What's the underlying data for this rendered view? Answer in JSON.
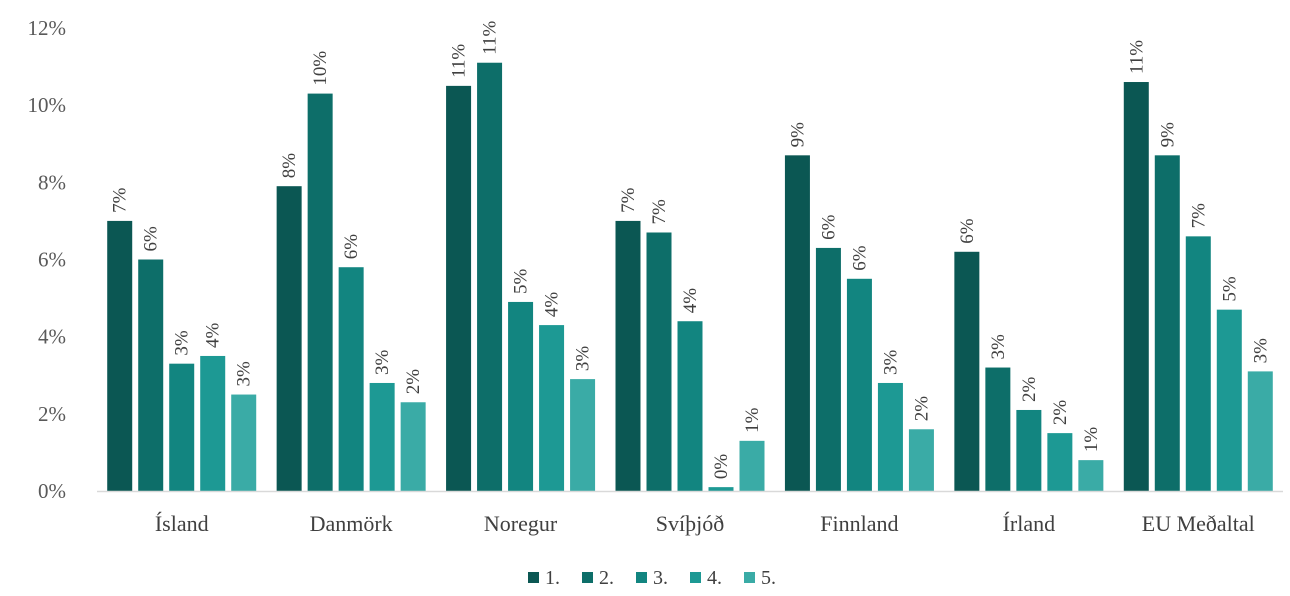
{
  "chart_data": {
    "type": "bar",
    "categories": [
      "Ísland",
      "Danmörk",
      "Noregur",
      "Svíþjóð",
      "Finnland",
      "Írland",
      "EU Meðaltal"
    ],
    "series": [
      {
        "name": "1.",
        "color": "#0b5753",
        "values": [
          7.0,
          7.9,
          10.5,
          7.0,
          8.7,
          6.2,
          10.6
        ],
        "labels": [
          "7%",
          "8%",
          "11%",
          "7%",
          "9%",
          "6%",
          "11%"
        ]
      },
      {
        "name": "2.",
        "color": "#0d6e69",
        "values": [
          6.0,
          10.3,
          11.1,
          6.7,
          6.3,
          3.2,
          8.7
        ],
        "labels": [
          "6%",
          "10%",
          "11%",
          "7%",
          "6%",
          "3%",
          "9%"
        ]
      },
      {
        "name": "3.",
        "color": "#128580",
        "values": [
          3.3,
          5.8,
          4.9,
          4.4,
          5.5,
          2.1,
          6.6
        ],
        "labels": [
          "3%",
          "6%",
          "5%",
          "4%",
          "6%",
          "2%",
          "7%"
        ]
      },
      {
        "name": "4.",
        "color": "#1d9994",
        "values": [
          3.5,
          2.8,
          4.3,
          0.1,
          2.8,
          1.5,
          4.7
        ],
        "labels": [
          "4%",
          "3%",
          "4%",
          "0%",
          "3%",
          "2%",
          "5%"
        ]
      },
      {
        "name": "5.",
        "color": "#3aaba6",
        "values": [
          2.5,
          2.3,
          2.9,
          1.3,
          1.6,
          0.8,
          3.1
        ],
        "labels": [
          "3%",
          "2%",
          "3%",
          "1%",
          "2%",
          "1%",
          "3%"
        ]
      }
    ],
    "y_ticks": [
      "0%",
      "2%",
      "4%",
      "6%",
      "8%",
      "10%",
      "12%"
    ],
    "ylim": [
      0,
      12
    ],
    "grid": false,
    "legend_position": "bottom"
  }
}
